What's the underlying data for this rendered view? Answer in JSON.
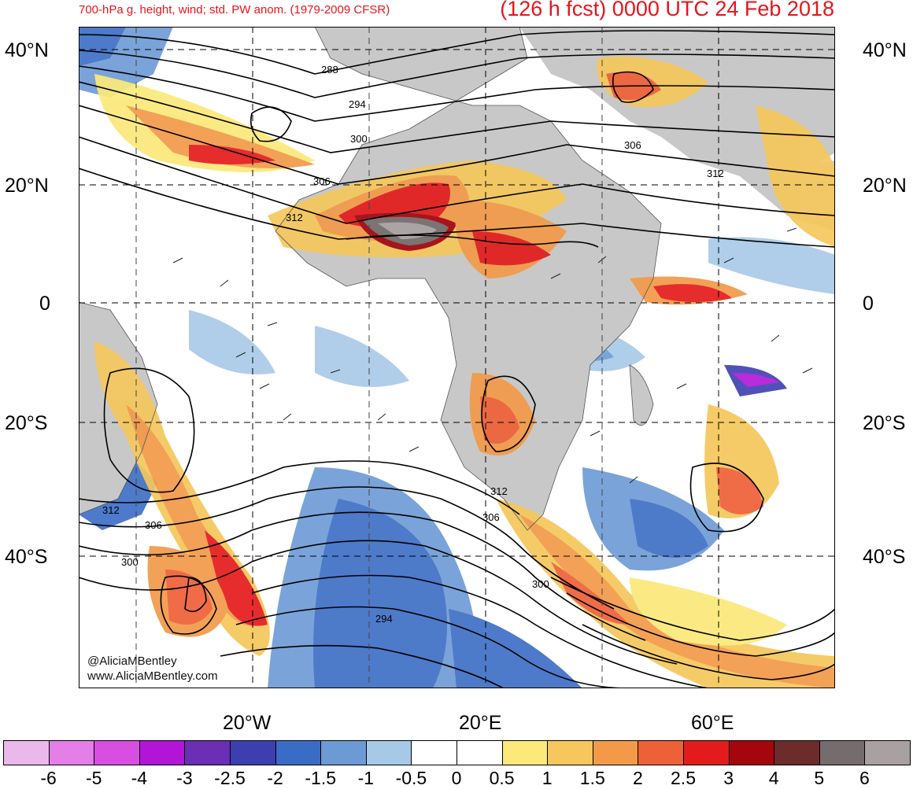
{
  "header": {
    "title_left": "700-hPa g. height, wind; std. PW anom. (1979-2009 CFSR)",
    "title_right": "(126 h fcst) 0000 UTC 24 Feb 2018"
  },
  "axes": {
    "lat_labels": [
      "40°N",
      "20°N",
      "0",
      "20°S",
      "40°S"
    ],
    "lon_labels": [
      "20°W",
      "20°E",
      "60°E"
    ]
  },
  "contours": {
    "labels": [
      "288",
      "294",
      "300",
      "306",
      "312",
      "312",
      "306",
      "300",
      "312",
      "306",
      "300",
      "294"
    ]
  },
  "credits": {
    "handle": "@AliciaMBentley",
    "website": "www.AliciaMBentley.com"
  },
  "colorbar": {
    "ticks": [
      "-6",
      "-5",
      "-4",
      "-3",
      "-2.5",
      "-2",
      "-1.5",
      "-1",
      "-0.5",
      "0",
      "0.5",
      "1",
      "1.5",
      "2",
      "2.5",
      "3",
      "4",
      "5",
      "6"
    ],
    "colors": [
      "#eab8ea",
      "#e37fe7",
      "#d84ee0",
      "#b215d8",
      "#6a2fb3",
      "#3d3fb1",
      "#3b6cc5",
      "#6c9ad5",
      "#a7c9e8",
      "#ffffff",
      "#ffffff",
      "#fbe97a",
      "#f5c75c",
      "#f39a48",
      "#ee6038",
      "#e41b1c",
      "#a5060e",
      "#6c2c2c",
      "#756d6d",
      "#a9a1a1"
    ]
  },
  "map": {
    "land_color": "#c8c8c8",
    "ocean_color": "#ffffff"
  }
}
